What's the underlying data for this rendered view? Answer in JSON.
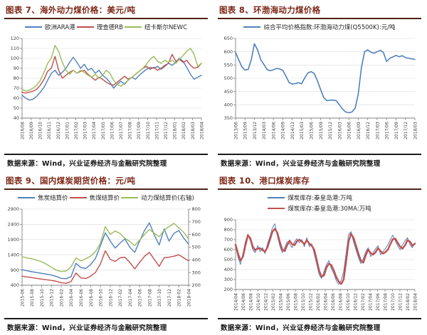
{
  "colors": {
    "title": "#7e2817",
    "title_rule": "#4e2418",
    "source_rule": "#1c1c1c",
    "grid": "#d9d9d9",
    "axis": "#808080",
    "tick_text": "#404040",
    "series_blue": "#4F81BD",
    "series_red": "#C0504D",
    "series_green": "#9BBB59"
  },
  "chart_data": [
    {
      "type": "line",
      "title": "图表 7、海外动力煤价格：美元/吨",
      "source": "数据来源：Wind，兴业证券经济与金融研究院整理",
      "legend_position": "top",
      "legend_rows": 1,
      "grid": true,
      "y_left": {
        "min": 40,
        "max": 120,
        "step": 10
      },
      "x_labels": [
        "2016/08",
        "2016/09",
        "2016/10",
        "2016/11",
        "2016/12",
        "2017/01",
        "2017/02",
        "2017/03",
        "2017/04",
        "2017/05",
        "2017/06",
        "2017/07",
        "2017/08",
        "2017/09",
        "2017/10",
        "2017/11",
        "2017/12",
        "2018/01",
        "2018/02",
        "2018/03",
        "2018/04"
      ],
      "series": [
        {
          "name": "欧洲ARA港",
          "color": "#4F81BD",
          "width": 1.4,
          "axis": "left",
          "values": [
            63,
            60,
            58,
            59,
            62,
            66,
            71,
            78,
            85,
            88,
            83,
            86,
            90,
            96,
            101,
            96,
            90,
            94,
            88,
            90,
            85,
            88,
            83,
            80,
            76,
            70,
            74,
            77,
            74,
            78,
            81,
            79,
            83,
            86,
            89,
            91,
            90,
            92,
            89,
            92,
            95,
            93,
            96,
            100,
            97,
            91,
            84,
            79,
            81,
            83
          ]
        },
        {
          "name": "理查德RB",
          "color": "#C0504D",
          "width": 1.4,
          "axis": "left",
          "values": [
            66,
            65,
            66,
            67,
            69,
            73,
            79,
            87,
            90,
            102,
            88,
            80,
            83,
            86,
            88,
            85,
            87,
            88,
            84,
            81,
            78,
            81,
            79,
            76,
            74,
            73,
            76,
            79,
            82,
            79,
            81,
            84,
            87,
            90,
            92,
            89,
            91,
            88,
            90,
            93,
            95,
            104,
            97,
            99,
            96,
            98,
            93,
            90,
            91,
            95
          ]
        },
        {
          "name": "纽卡斯尔NEWC",
          "color": "#9BBB59",
          "width": 1.4,
          "axis": "left",
          "values": [
            69,
            67,
            68,
            70,
            73,
            78,
            86,
            95,
            100,
            113,
            107,
            96,
            88,
            84,
            88,
            85,
            88,
            86,
            83,
            81,
            84,
            80,
            83,
            88,
            85,
            78,
            74,
            72,
            75,
            78,
            81,
            84,
            87,
            90,
            94,
            99,
            102,
            97,
            95,
            98,
            96,
            98,
            95,
            99,
            103,
            107,
            110,
            104,
            92,
            95
          ]
        }
      ]
    },
    {
      "type": "line",
      "title": "图表 8、环渤海动力煤价格",
      "source": "数据来源：Wind，兴业证券经济与金融研究院整理",
      "legend_position": "top",
      "legend_rows": 1,
      "grid": true,
      "y_left": {
        "min": 350,
        "max": 650,
        "step": 50
      },
      "x_labels": [
        "2013/06",
        "2013/09",
        "2013/12",
        "2014/03",
        "2014/06",
        "2014/09",
        "2014/12",
        "2015/03",
        "2015/06",
        "2015/09",
        "2015/12",
        "2016/03",
        "2016/06",
        "2016/09",
        "2016/12",
        "2017/03",
        "2017/06",
        "2017/09",
        "2017/12",
        "2018/03"
      ],
      "series": [
        {
          "name": "综合平均价格指数:环渤海动力煤(Q5500K):元/吨",
          "color": "#4F81BD",
          "width": 1.6,
          "axis": "left",
          "values": [
            597,
            570,
            543,
            531,
            533,
            570,
            630,
            607,
            570,
            552,
            533,
            528,
            532,
            537,
            535,
            530,
            508,
            484,
            478,
            480,
            483,
            479,
            502,
            520,
            525,
            518,
            492,
            458,
            428,
            416,
            417,
            418,
            415,
            400,
            384,
            373,
            370,
            373,
            387,
            440,
            540,
            600,
            607,
            598,
            594,
            600,
            605,
            597,
            563,
            575,
            580,
            586,
            581,
            585,
            578,
            575,
            573,
            571
          ]
        }
      ]
    },
    {
      "type": "line",
      "title": "图表 9、国内煤炭期货价格：元/吨",
      "source": "数据来源：Wind，兴业证券经济与金融研究院整理",
      "legend_position": "top",
      "legend_rows": 1,
      "grid": true,
      "y_left": {
        "min": 400,
        "max": 2900,
        "step": 500
      },
      "y_right": {
        "min": 200,
        "max": 800,
        "step": 100
      },
      "x_labels": [
        "2015-06",
        "2015-08",
        "2015-10",
        "2015-12",
        "2016-02",
        "2016-04",
        "2016-06",
        "2016-08",
        "2016-10",
        "2016-12",
        "2017-02",
        "2017-04",
        "2017-06",
        "2017-08",
        "2017-10",
        "2017-12",
        "2018-02",
        "2018-04"
      ],
      "series": [
        {
          "name": "焦炭结算价",
          "color": "#4F81BD",
          "width": 1.4,
          "axis": "left",
          "values": [
            910,
            875,
            845,
            815,
            790,
            765,
            735,
            685,
            625,
            615,
            680,
            1120,
            980,
            950,
            1080,
            1280,
            1700,
            2120,
            1850,
            1620,
            1780,
            1920,
            1650,
            1480,
            1850,
            2200,
            2450,
            2050,
            1720,
            2250,
            1850,
            2100,
            2200,
            1950,
            1750
          ]
        },
        {
          "name": "焦煤结算价",
          "color": "#C0504D",
          "width": 1.4,
          "axis": "left",
          "values": [
            700,
            670,
            650,
            625,
            600,
            580,
            558,
            528,
            480,
            462,
            520,
            800,
            640,
            620,
            700,
            820,
            1100,
            1530,
            1250,
            1180,
            1300,
            1320,
            1150,
            940,
            1150,
            1350,
            1480,
            1250,
            1020,
            1300,
            1320,
            1350,
            1400,
            1300,
            1200
          ]
        },
        {
          "name": "动力煤结算价(右轴)",
          "color": "#9BBB59",
          "width": 1.4,
          "axis": "right",
          "values": [
            425,
            415,
            408,
            398,
            385,
            365,
            342,
            318,
            308,
            312,
            345,
            415,
            392,
            408,
            430,
            465,
            530,
            662,
            600,
            628,
            608,
            570,
            545,
            512,
            556,
            600,
            640,
            610,
            582,
            635,
            662,
            688,
            652,
            618,
            565
          ]
        }
      ]
    },
    {
      "type": "line",
      "title": "图表 10、港口煤炭库存",
      "source": "数据来源：Wind，兴业证券经济与金融研究院整理",
      "legend_position": "top",
      "legend_rows": 2,
      "grid": true,
      "y_left": {
        "min": 200,
        "max": 900,
        "step": 100
      },
      "x_labels": [
        "2014/04",
        "2014/06",
        "2014/08",
        "2014/10",
        "2014/12",
        "2015/02",
        "2015/04",
        "2015/06",
        "2015/08",
        "2015/10",
        "2015/12",
        "2016/02",
        "2016/04",
        "2016/06",
        "2016/08",
        "2016/10",
        "2016/12",
        "2017/02",
        "2017/04",
        "2017/06",
        "2017/08",
        "2017/10",
        "2017/12",
        "2018/02",
        "2018/04"
      ],
      "series": [
        {
          "name": "煤炭库存:秦皇岛港:万吨",
          "color": "#4F81BD",
          "width": 1.0,
          "axis": "left",
          "values": [
            640,
            520,
            452,
            560,
            680,
            755,
            690,
            600,
            570,
            640,
            580,
            620,
            560,
            660,
            730,
            820,
            860,
            740,
            640,
            570,
            620,
            680,
            660,
            620,
            680,
            710,
            670,
            700,
            630,
            720,
            630,
            660,
            560,
            460,
            350,
            310,
            380,
            450,
            490,
            410,
            360,
            290,
            250,
            290,
            380,
            560,
            750,
            780,
            680,
            600,
            520,
            460,
            510,
            580,
            620,
            530,
            570,
            610,
            640,
            550,
            580,
            610,
            650,
            700,
            745,
            690,
            640,
            600,
            650,
            690,
            720,
            650,
            620,
            670
          ]
        },
        {
          "name": "煤炭库存:秦皇岛港:30MA:万吨",
          "color": "#C0504D",
          "width": 2.4,
          "axis": "left",
          "values": [
            650,
            560,
            490,
            530,
            640,
            745,
            715,
            630,
            595,
            610,
            615,
            595,
            580,
            625,
            700,
            780,
            810,
            770,
            680,
            600,
            585,
            645,
            690,
            655,
            645,
            685,
            700,
            680,
            655,
            695,
            660,
            640,
            600,
            500,
            390,
            330,
            340,
            420,
            460,
            445,
            390,
            325,
            280,
            255,
            300,
            480,
            680,
            760,
            720,
            640,
            560,
            490,
            470,
            545,
            600,
            565,
            550,
            575,
            615,
            585,
            560,
            575,
            600,
            655,
            705,
            710,
            670,
            630,
            610,
            645,
            695,
            680,
            640,
            660
          ]
        }
      ]
    }
  ]
}
